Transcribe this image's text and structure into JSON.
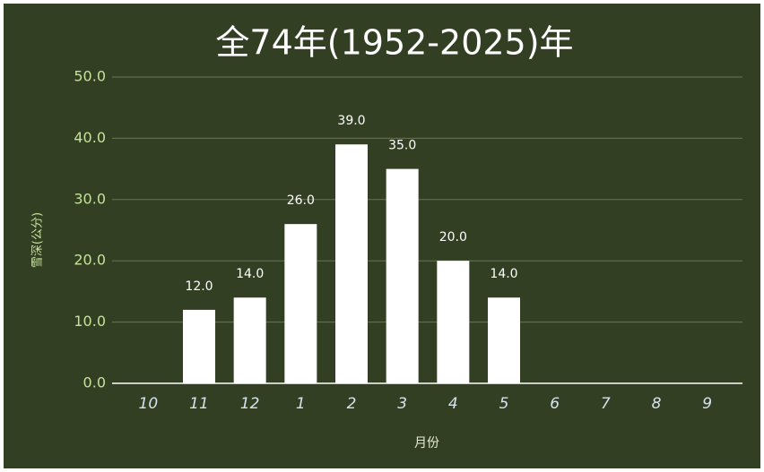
{
  "chart_data": {
    "type": "bar",
    "title": "全74年(1952-2025)年",
    "x_label": "月份",
    "y_label": "雪深(公分)",
    "categories": [
      "10",
      "11",
      "12",
      "1",
      "2",
      "3",
      "4",
      "5",
      "6",
      "7",
      "8",
      "9"
    ],
    "values": [
      null,
      12,
      14,
      26,
      39,
      35,
      20,
      14,
      null,
      null,
      null,
      null
    ],
    "value_labels": [
      null,
      "12.0",
      "14.0",
      "26.0",
      "39.0",
      "35.0",
      "20.0",
      "14.0",
      null,
      null,
      null,
      null
    ],
    "color": "#ffffff",
    "ylim": [
      0,
      50
    ],
    "yticks": [
      {
        "value": 0,
        "label": "0.0"
      },
      {
        "value": 10,
        "label": "10.0"
      },
      {
        "value": 20,
        "label": "20.0"
      },
      {
        "value": 30,
        "label": "30.0"
      },
      {
        "value": 40,
        "label": "40.0"
      },
      {
        "value": 50,
        "label": "50.0"
      }
    ],
    "grid": true
  }
}
